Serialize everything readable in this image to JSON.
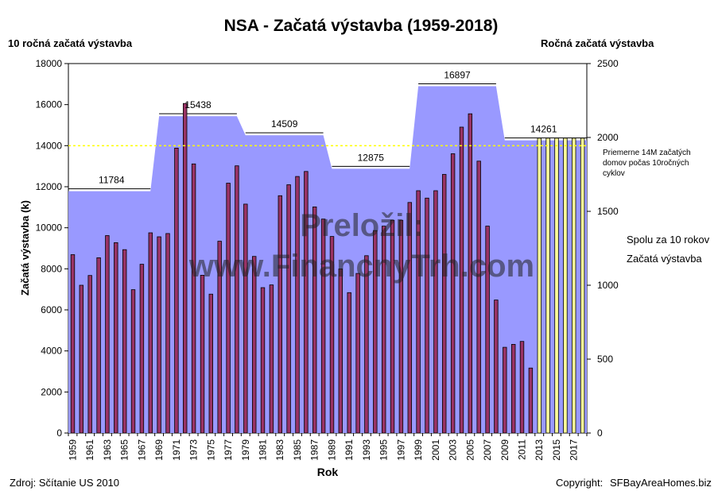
{
  "chart_data": {
    "type": "bar",
    "title": "NSA - Začatá výstavba (1959-2018)",
    "left_axis_title": "10 ročná začatá výstavba",
    "right_axis_title": "Ročná začatá výstavba",
    "ylabel": "Začatá výstavba (k)",
    "xlabel": "Rok",
    "left_ylim": [
      0,
      18000
    ],
    "left_yticks": [
      0,
      2000,
      4000,
      6000,
      8000,
      10000,
      12000,
      14000,
      16000,
      18000
    ],
    "right_ylim": [
      0,
      2500
    ],
    "right_yticks": [
      0,
      500,
      1000,
      1500,
      2000,
      2500
    ],
    "x_tick_labels": [
      "1959",
      "1961",
      "1963",
      "1965",
      "1967",
      "1969",
      "1971",
      "1973",
      "1975",
      "1977",
      "1979",
      "1981",
      "1983",
      "1985",
      "1987",
      "1989",
      "1991",
      "1993",
      "1995",
      "1997",
      "1999",
      "2001",
      "2003",
      "2005",
      "2007",
      "2009",
      "2011",
      "2013",
      "2015",
      "2017"
    ],
    "years": [
      1959,
      1960,
      1961,
      1962,
      1963,
      1964,
      1965,
      1966,
      1967,
      1968,
      1969,
      1970,
      1971,
      1972,
      1973,
      1974,
      1975,
      1976,
      1977,
      1978,
      1979,
      1980,
      1981,
      1982,
      1983,
      1984,
      1985,
      1986,
      1987,
      1988,
      1989,
      1990,
      1991,
      1992,
      1993,
      1994,
      1995,
      1996,
      1997,
      1998,
      1999,
      2000,
      2001,
      2002,
      2003,
      2004,
      2005,
      2006,
      2007,
      2008,
      2009,
      2010,
      2011,
      2012,
      2013,
      2014,
      2015,
      2016,
      2017,
      2018
    ],
    "series": [
      {
        "name": "Spolu za 10 rokov",
        "type": "area",
        "axis": "left",
        "color": "#9999ff",
        "values": [
          11784,
          11784,
          11784,
          11784,
          11784,
          11784,
          11784,
          11784,
          11784,
          11784,
          15438,
          15438,
          15438,
          15438,
          15438,
          15438,
          15438,
          15438,
          15438,
          15438,
          14509,
          14509,
          14509,
          14509,
          14509,
          14509,
          14509,
          14509,
          14509,
          14509,
          12875,
          12875,
          12875,
          12875,
          12875,
          12875,
          12875,
          12875,
          12875,
          12875,
          16897,
          16897,
          16897,
          16897,
          16897,
          16897,
          16897,
          16897,
          16897,
          16897,
          14261,
          14261,
          14261,
          14261,
          14261,
          14261,
          14261,
          14261,
          14261,
          14261
        ]
      },
      {
        "name": "Začatá výstavba",
        "type": "bar",
        "axis": "right",
        "color": "#993366",
        "values": [
          1207,
          1000,
          1066,
          1186,
          1336,
          1288,
          1241,
          970,
          1142,
          1355,
          1328,
          1350,
          1928,
          2230,
          1821,
          1068,
          940,
          1298,
          1691,
          1808,
          1549,
          1195,
          984,
          1002,
          1606,
          1680,
          1736,
          1770,
          1530,
          1448,
          1330,
          1110,
          950,
          1080,
          1200,
          1370,
          1400,
          1440,
          1440,
          1560,
          1640,
          1590,
          1640,
          1750,
          1890,
          2070,
          2160,
          1840,
          1400,
          900,
          580,
          600,
          620,
          440,
          1995,
          1995,
          1995,
          1995,
          1995,
          1995
        ]
      }
    ],
    "projected_from": 2013,
    "projected_color": "#ffff99",
    "level_labels": [
      {
        "text": "11784",
        "value": 11784
      },
      {
        "text": "15438",
        "value": 15438
      },
      {
        "text": "14509",
        "value": 14509
      },
      {
        "text": "12875",
        "value": 12875
      },
      {
        "text": "16897",
        "value": 16897
      },
      {
        "text": "14261",
        "value": 14261
      }
    ],
    "reference_line": {
      "value": 14000,
      "color": "#ffff00"
    },
    "legend_placement": "right",
    "grid": false
  },
  "annotation_note": "Priemerne 14M začatých domov počas 10ročných cyklov",
  "legend_items": [
    "Spolu za 10 rokov",
    "Začatá výstavba"
  ],
  "watermark": {
    "line1": "Preložil:",
    "line2": "www.FinancnyTrh.com"
  },
  "footer": {
    "source": "Zdroj: Sčítanie US 2010",
    "copyright_label": "Copyright:",
    "copyright_site": "SFBayAreaHomes.biz"
  }
}
